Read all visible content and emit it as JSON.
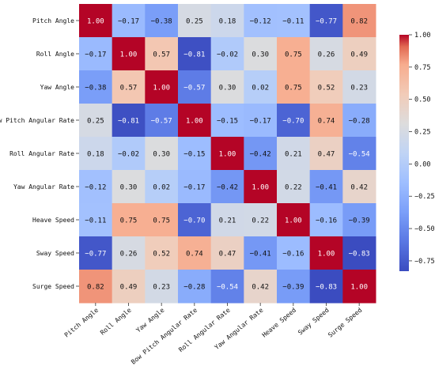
{
  "chart_data": {
    "type": "heatmap",
    "title": "",
    "xlabel": "",
    "ylabel": "",
    "labels": [
      "Pitch Angle",
      "Roll Angle",
      "Yaw Angle",
      "Bow Pitch Angular Rate",
      "Roll Angular Rate",
      "Yaw Angular Rate",
      "Heave Speed",
      "Sway Speed",
      "Surge Speed"
    ],
    "matrix": [
      [
        1.0,
        -0.17,
        -0.38,
        0.25,
        0.18,
        -0.12,
        -0.11,
        -0.77,
        0.82
      ],
      [
        -0.17,
        1.0,
        0.57,
        -0.81,
        -0.02,
        0.3,
        0.75,
        0.26,
        0.49
      ],
      [
        -0.38,
        0.57,
        1.0,
        -0.57,
        0.3,
        0.02,
        0.75,
        0.52,
        0.23
      ],
      [
        0.25,
        -0.81,
        -0.57,
        1.0,
        -0.15,
        -0.17,
        -0.7,
        0.74,
        -0.28
      ],
      [
        0.18,
        -0.02,
        0.3,
        -0.15,
        1.0,
        -0.42,
        0.21,
        0.47,
        -0.54
      ],
      [
        -0.12,
        0.3,
        0.02,
        -0.17,
        -0.42,
        1.0,
        0.22,
        -0.41,
        0.42
      ],
      [
        -0.11,
        0.75,
        0.75,
        -0.7,
        0.21,
        0.22,
        1.0,
        -0.16,
        -0.39
      ],
      [
        -0.77,
        0.26,
        0.52,
        0.74,
        0.47,
        -0.41,
        -0.16,
        1.0,
        -0.83
      ],
      [
        0.82,
        0.49,
        0.23,
        -0.28,
        -0.54,
        0.42,
        -0.39,
        -0.83,
        1.0
      ]
    ],
    "value_format": "0.00",
    "colorbar": {
      "colormap": "coolwarm",
      "min": -0.83,
      "max": 1.0,
      "ticks": [
        1.0,
        0.75,
        0.5,
        0.25,
        0.0,
        -0.25,
        -0.5,
        -0.75
      ],
      "tick_labels": [
        "1.00",
        "0.75",
        "0.50",
        "0.25",
        "0.00",
        "−0.25",
        "−0.50",
        "−0.75"
      ],
      "placement": "right"
    },
    "grid": false
  }
}
